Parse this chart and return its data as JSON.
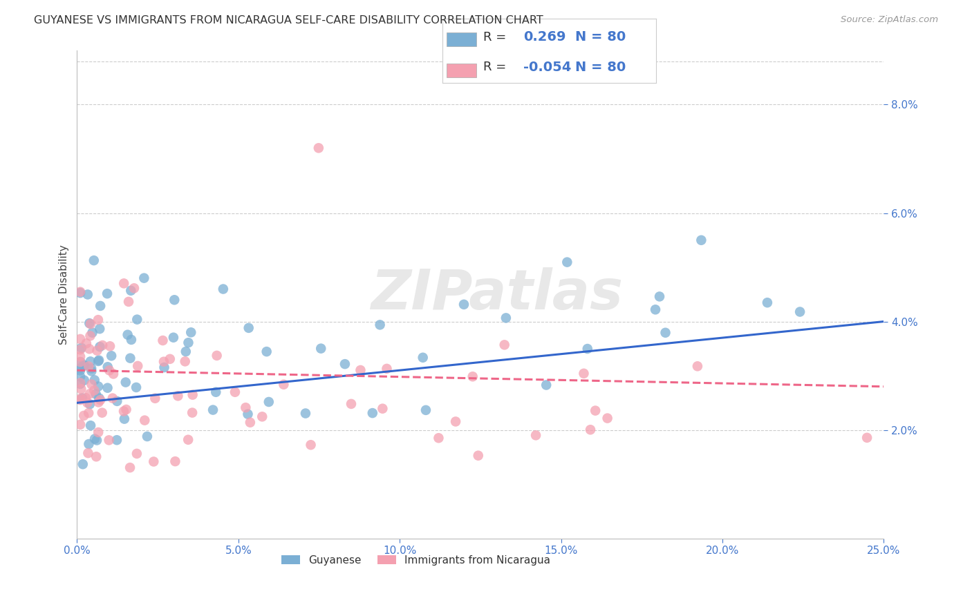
{
  "title": "GUYANESE VS IMMIGRANTS FROM NICARAGUA SELF-CARE DISABILITY CORRELATION CHART",
  "source": "Source: ZipAtlas.com",
  "ylabel": "Self-Care Disability",
  "xlim": [
    0.0,
    0.25
  ],
  "ylim": [
    0.0,
    0.09
  ],
  "yticks": [
    0.02,
    0.04,
    0.06,
    0.08
  ],
  "ytick_labels": [
    "2.0%",
    "4.0%",
    "6.0%",
    "8.0%"
  ],
  "xtick_labels": [
    "0.0%",
    "5.0%",
    "10.0%",
    "15.0%",
    "20.0%",
    "25.0%"
  ],
  "legend1_label": "Guyanese",
  "legend2_label": "Immigrants from Nicaragua",
  "r1": 0.269,
  "n1": 80,
  "r2": -0.054,
  "n2": 80,
  "color1": "#7BAFD4",
  "color2": "#F4A0B0",
  "line1_color": "#3366CC",
  "line2_color": "#EE6688",
  "watermark": "ZIPatlas",
  "background_color": "#FFFFFF",
  "grid_color": "#CCCCCC",
  "title_color": "#333333",
  "axis_label_color": "#444444",
  "tick_color": "#4477CC"
}
